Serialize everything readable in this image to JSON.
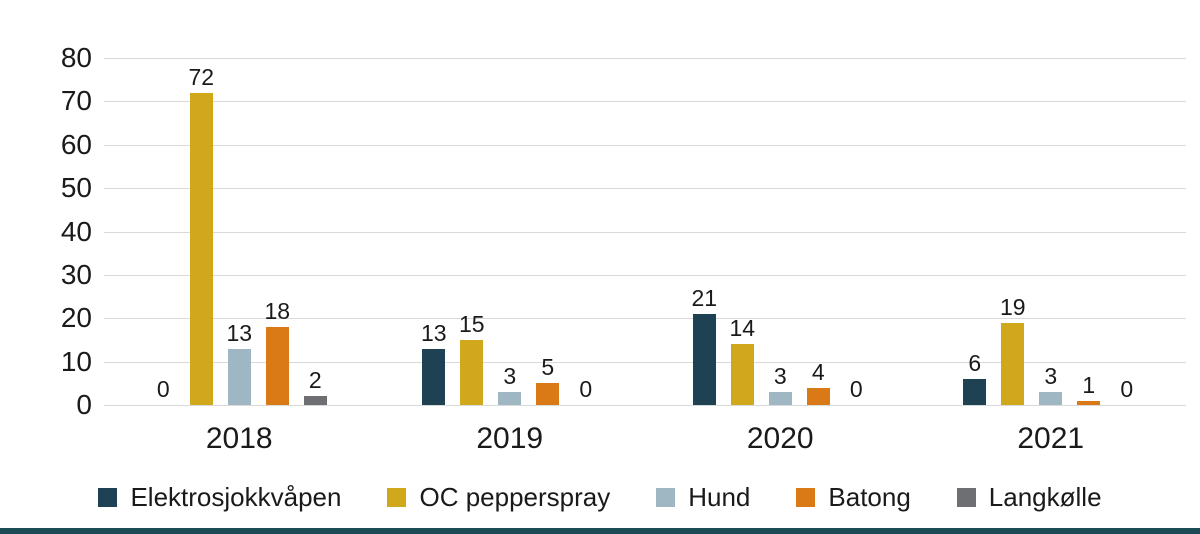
{
  "page": {
    "bottom_accent_color": "#1c4a57",
    "gridline_color": "#d9d9d9"
  },
  "chart_data": {
    "type": "bar",
    "title": "",
    "xlabel": "",
    "ylabel": "",
    "categories": [
      "2018",
      "2019",
      "2020",
      "2021"
    ],
    "series": [
      {
        "name": "Elektrosjokkvåpen",
        "color": "#1e4153",
        "values": [
          0,
          13,
          21,
          6
        ]
      },
      {
        "name": "OC pepperspray",
        "color": "#d1a81c",
        "values": [
          72,
          15,
          14,
          19
        ]
      },
      {
        "name": "Hund",
        "color": "#9fb6c3",
        "values": [
          13,
          3,
          3,
          3
        ]
      },
      {
        "name": "Batong",
        "color": "#d97a16",
        "values": [
          18,
          5,
          4,
          1
        ]
      },
      {
        "name": "Langkølle",
        "color": "#6d6f72",
        "values": [
          2,
          0,
          0,
          0
        ]
      }
    ],
    "ylim": [
      0,
      80
    ],
    "yticks": [
      0,
      10,
      20,
      30,
      40,
      50,
      60,
      70,
      80
    ],
    "grid": true,
    "legend_position": "bottom"
  }
}
